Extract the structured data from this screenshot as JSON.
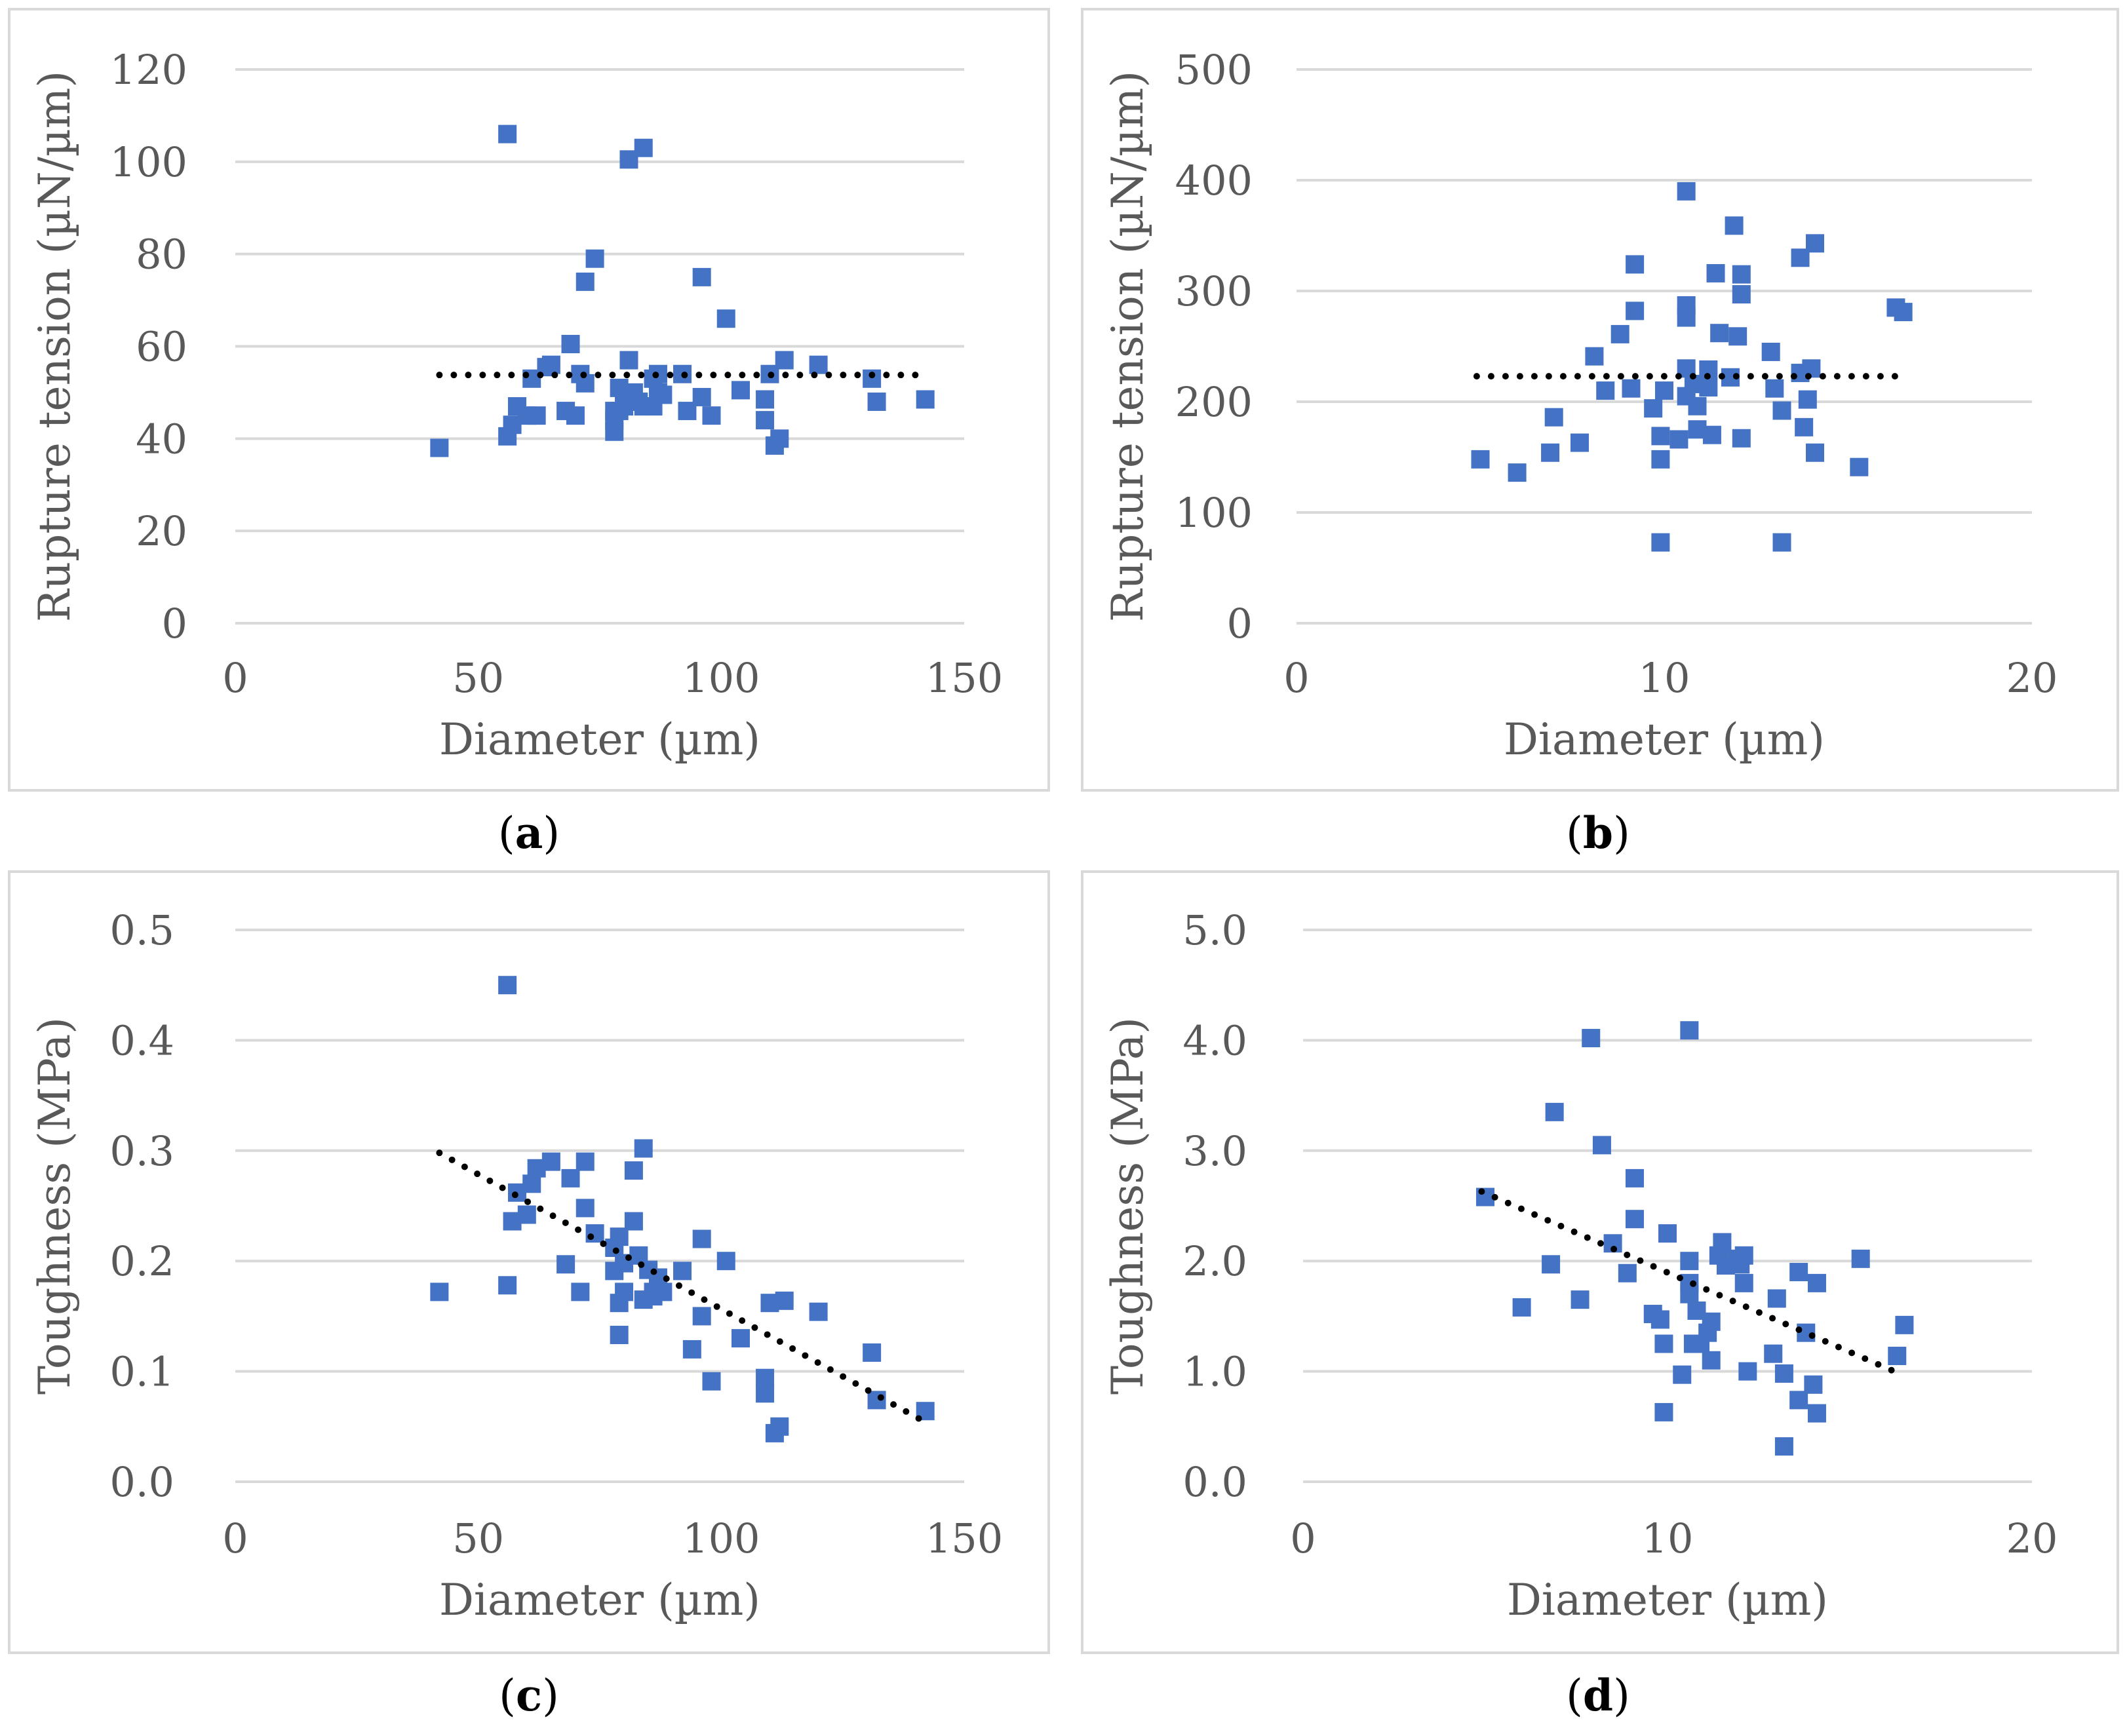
{
  "colors": {
    "marker": "#4472c4",
    "trend": "#000000",
    "grid": "#d9d9d9",
    "text": "#595959"
  },
  "captions": {
    "a_letter": "a",
    "b_letter": "b",
    "c_letter": "c",
    "d_letter": "d"
  },
  "chart_data": [
    {
      "id": "a",
      "type": "scatter",
      "xlabel": "Diameter (µm)",
      "ylabel": "Rupture tension (µN/µm)",
      "xlim": [
        0,
        150
      ],
      "ylim": [
        0,
        120
      ],
      "xticks": [
        0,
        50,
        100,
        150
      ],
      "yticks": [
        0,
        20,
        40,
        60,
        80,
        100,
        120
      ],
      "ytick_labels": [
        "0",
        "20",
        "40",
        "60",
        "80",
        "100",
        "120"
      ],
      "grid": "horizontal",
      "trendline": {
        "type": "linear",
        "points": [
          [
            42,
            53.8
          ],
          [
            142,
            53.8
          ]
        ]
      },
      "points": [
        [
          42,
          38
        ],
        [
          56,
          106
        ],
        [
          56,
          40.5
        ],
        [
          57,
          43
        ],
        [
          58,
          47
        ],
        [
          60,
          45
        ],
        [
          61,
          53
        ],
        [
          62,
          45
        ],
        [
          64,
          55.5
        ],
        [
          65,
          56
        ],
        [
          68,
          46
        ],
        [
          69,
          60.5
        ],
        [
          70,
          45
        ],
        [
          71,
          54
        ],
        [
          72,
          74
        ],
        [
          72,
          52
        ],
        [
          74,
          79
        ],
        [
          78,
          46
        ],
        [
          78,
          41.5
        ],
        [
          78,
          44
        ],
        [
          79,
          51
        ],
        [
          79,
          46
        ],
        [
          80,
          48
        ],
        [
          80,
          47
        ],
        [
          81,
          100.5
        ],
        [
          81,
          57
        ],
        [
          82,
          50
        ],
        [
          83,
          48
        ],
        [
          84,
          103
        ],
        [
          84,
          47
        ],
        [
          86,
          53
        ],
        [
          86,
          47
        ],
        [
          87,
          50
        ],
        [
          87,
          54
        ],
        [
          88,
          49.5
        ],
        [
          92,
          54
        ],
        [
          93,
          46
        ],
        [
          96,
          75
        ],
        [
          96,
          49
        ],
        [
          98,
          45
        ],
        [
          101,
          66
        ],
        [
          104,
          50.5
        ],
        [
          109,
          48.5
        ],
        [
          109,
          44
        ],
        [
          110,
          54
        ],
        [
          111,
          38.5
        ],
        [
          112,
          40
        ],
        [
          113,
          57
        ],
        [
          120,
          56
        ],
        [
          131,
          53
        ],
        [
          132,
          48
        ],
        [
          142,
          48.5
        ]
      ]
    },
    {
      "id": "b",
      "type": "scatter",
      "xlabel": "Diameter (µm)",
      "ylabel": "Rupture tension (µN/µm)",
      "xlim": [
        0,
        20
      ],
      "ylim": [
        0,
        500
      ],
      "xticks": [
        0,
        10,
        20
      ],
      "yticks": [
        0,
        100,
        200,
        300,
        400,
        500
      ],
      "ytick_labels": [
        "0",
        "100",
        "200",
        "300",
        "400",
        "500"
      ],
      "grid": "horizontal",
      "trendline": {
        "type": "linear",
        "points": [
          [
            4.9,
            223
          ],
          [
            16.5,
            223
          ]
        ]
      },
      "points": [
        [
          5,
          148
        ],
        [
          6,
          136
        ],
        [
          6.9,
          154
        ],
        [
          7,
          186
        ],
        [
          7.7,
          163
        ],
        [
          8.1,
          241
        ],
        [
          8.4,
          210
        ],
        [
          8.8,
          261
        ],
        [
          9.1,
          212
        ],
        [
          9.2,
          324
        ],
        [
          9.2,
          282
        ],
        [
          9.7,
          194
        ],
        [
          9.9,
          148
        ],
        [
          9.9,
          169
        ],
        [
          10,
          210
        ],
        [
          10.4,
          166
        ],
        [
          10.6,
          205
        ],
        [
          10.6,
          390
        ],
        [
          10.6,
          287
        ],
        [
          10.6,
          276
        ],
        [
          10.6,
          230
        ],
        [
          10.8,
          216
        ],
        [
          10.9,
          196
        ],
        [
          10.9,
          175
        ],
        [
          11.2,
          213
        ],
        [
          11.2,
          229
        ],
        [
          11.3,
          170
        ],
        [
          11.4,
          316
        ],
        [
          11.5,
          262
        ],
        [
          11.8,
          222
        ],
        [
          11.9,
          359
        ],
        [
          12,
          259
        ],
        [
          12.1,
          315
        ],
        [
          12.1,
          297
        ],
        [
          12.1,
          167
        ],
        [
          12.9,
          245
        ],
        [
          13,
          212
        ],
        [
          13.2,
          192
        ],
        [
          13.2,
          73
        ],
        [
          13.7,
          226
        ],
        [
          13.7,
          330
        ],
        [
          13.8,
          177
        ],
        [
          13.9,
          202
        ],
        [
          14,
          230
        ],
        [
          14.1,
          343
        ],
        [
          14.1,
          154
        ],
        [
          15.3,
          141
        ],
        [
          16.3,
          285
        ],
        [
          16.5,
          281
        ],
        [
          9.9,
          73
        ]
      ]
    },
    {
      "id": "c",
      "type": "scatter",
      "xlabel": "Diameter (µm)",
      "ylabel": "Toughness (MPa)",
      "xlim": [
        0,
        150
      ],
      "ylim": [
        0,
        0.5
      ],
      "xticks": [
        0,
        50,
        100,
        150
      ],
      "yticks": [
        0,
        0.1,
        0.2,
        0.3,
        0.4,
        0.5
      ],
      "ytick_labels": [
        "0.0",
        "0.1",
        "0.2",
        "0.3",
        "0.4",
        "0.5"
      ],
      "grid": "horizontal",
      "trendline": {
        "type": "linear",
        "points": [
          [
            42,
            0.298
          ],
          [
            142,
            0.054
          ]
        ]
      },
      "points": [
        [
          42,
          0.172
        ],
        [
          56,
          0.45
        ],
        [
          56,
          0.178
        ],
        [
          57,
          0.236
        ],
        [
          58,
          0.262
        ],
        [
          60,
          0.242
        ],
        [
          61,
          0.27
        ],
        [
          62,
          0.284
        ],
        [
          65,
          0.29
        ],
        [
          68,
          0.197
        ],
        [
          69,
          0.275
        ],
        [
          71,
          0.172
        ],
        [
          72,
          0.248
        ],
        [
          72,
          0.29
        ],
        [
          74,
          0.225
        ],
        [
          78,
          0.212
        ],
        [
          78,
          0.191
        ],
        [
          79,
          0.222
        ],
        [
          79,
          0.162
        ],
        [
          79,
          0.133
        ],
        [
          80,
          0.172
        ],
        [
          80,
          0.198
        ],
        [
          82,
          0.236
        ],
        [
          82,
          0.282
        ],
        [
          83,
          0.205
        ],
        [
          84,
          0.165
        ],
        [
          84,
          0.302
        ],
        [
          85,
          0.192
        ],
        [
          86,
          0.172
        ],
        [
          86,
          0.168
        ],
        [
          87,
          0.185
        ],
        [
          88,
          0.172
        ],
        [
          92,
          0.191
        ],
        [
          94,
          0.12
        ],
        [
          96,
          0.22
        ],
        [
          96,
          0.15
        ],
        [
          98,
          0.091
        ],
        [
          101,
          0.2
        ],
        [
          104,
          0.13
        ],
        [
          109,
          0.094
        ],
        [
          109,
          0.08
        ],
        [
          110,
          0.162
        ],
        [
          111,
          0.044
        ],
        [
          112,
          0.05
        ],
        [
          113,
          0.164
        ],
        [
          120,
          0.154
        ],
        [
          131,
          0.117
        ],
        [
          132,
          0.074
        ],
        [
          142,
          0.064
        ]
      ]
    },
    {
      "id": "d",
      "type": "scatter",
      "xlabel": "Diameter (µm)",
      "ylabel": "Toughness (MPa)",
      "xlim": [
        0,
        20
      ],
      "ylim": [
        0,
        5
      ],
      "xticks": [
        0,
        10,
        20
      ],
      "yticks": [
        0,
        1,
        2,
        3,
        4,
        5
      ],
      "ytick_labels": [
        "0.0",
        "1.0",
        "2.0",
        "3.0",
        "4.0",
        "5.0"
      ],
      "grid": "horizontal",
      "trendline": {
        "type": "linear",
        "points": [
          [
            4.9,
            2.63
          ],
          [
            16.5,
            0.96
          ]
        ]
      },
      "points": [
        [
          5,
          2.58
        ],
        [
          6,
          1.58
        ],
        [
          6.8,
          1.97
        ],
        [
          6.9,
          3.35
        ],
        [
          7.6,
          1.65
        ],
        [
          7.9,
          4.02
        ],
        [
          8.2,
          3.05
        ],
        [
          8.5,
          2.16
        ],
        [
          8.9,
          1.89
        ],
        [
          9.1,
          2.75
        ],
        [
          9.1,
          2.38
        ],
        [
          9.6,
          1.52
        ],
        [
          9.8,
          1.47
        ],
        [
          9.9,
          1.25
        ],
        [
          9.9,
          0.63
        ],
        [
          10,
          2.25
        ],
        [
          10.4,
          0.97
        ],
        [
          10.6,
          2.0
        ],
        [
          10.6,
          4.09
        ],
        [
          10.6,
          1.8
        ],
        [
          10.6,
          1.7
        ],
        [
          10.7,
          1.25
        ],
        [
          10.8,
          1.55
        ],
        [
          10.9,
          1.25
        ],
        [
          11.1,
          1.35
        ],
        [
          11.2,
          1.45
        ],
        [
          11.2,
          1.1
        ],
        [
          11.4,
          2.05
        ],
        [
          11.5,
          2.17
        ],
        [
          11.6,
          1.96
        ],
        [
          11.9,
          2.02
        ],
        [
          12,
          1.97
        ],
        [
          12.1,
          1.8
        ],
        [
          12.1,
          2.05
        ],
        [
          12.2,
          1.0
        ],
        [
          12.9,
          1.16
        ],
        [
          13,
          1.66
        ],
        [
          13.2,
          0.32
        ],
        [
          13.2,
          0.98
        ],
        [
          13.6,
          1.9
        ],
        [
          13.6,
          0.74
        ],
        [
          13.8,
          1.35
        ],
        [
          14,
          0.88
        ],
        [
          14.1,
          1.8
        ],
        [
          14.1,
          0.62
        ],
        [
          15.3,
          2.02
        ],
        [
          16.3,
          1.14
        ],
        [
          16.5,
          1.42
        ]
      ]
    }
  ]
}
